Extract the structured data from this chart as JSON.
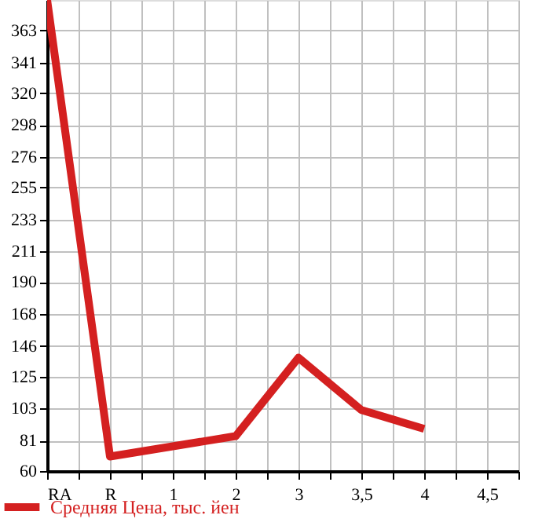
{
  "chart_data": {
    "type": "line",
    "categories": [
      "RA",
      "R",
      "1",
      "2",
      "3",
      "3,5",
      "4",
      "4,5"
    ],
    "series": [
      {
        "name": "Средняя Цена, тыс. йен",
        "color": "#d42020",
        "values": [
          384,
          70,
          null,
          84,
          138,
          102,
          89,
          null
        ]
      }
    ],
    "ylim": [
      60,
      384
    ],
    "yticks": [
      60,
      81,
      103,
      125,
      146,
      168,
      190,
      211,
      233,
      255,
      276,
      298,
      320,
      341,
      363
    ],
    "grid": true,
    "legend": "bottom left",
    "marker": "none",
    "line_style": "solid"
  }
}
